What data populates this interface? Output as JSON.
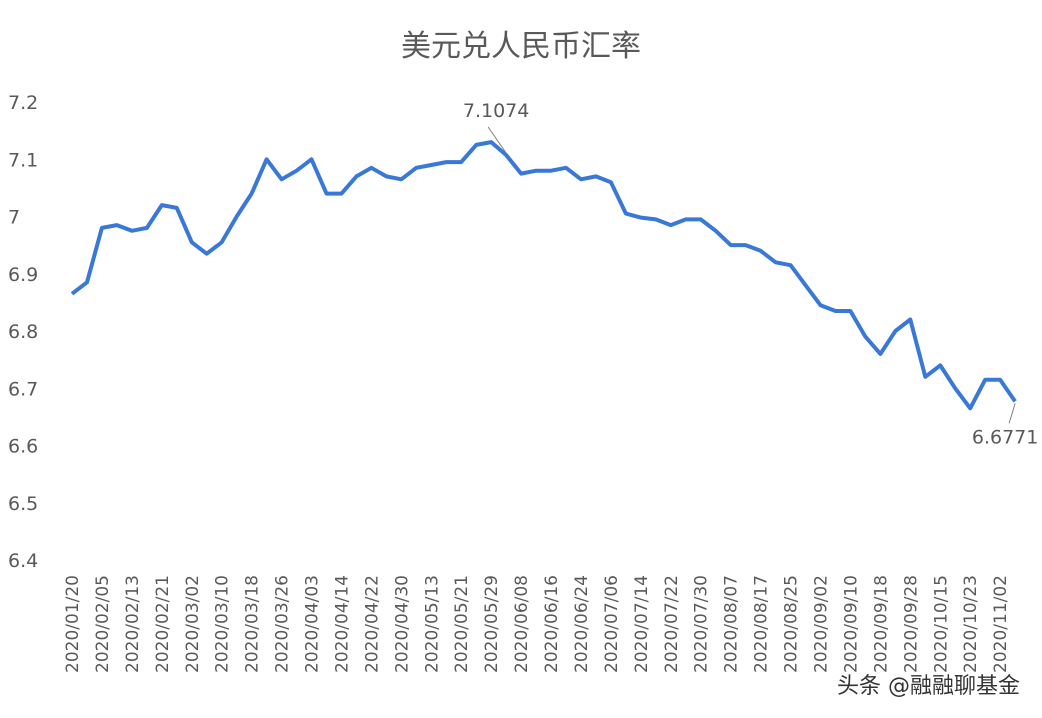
{
  "chart_data": {
    "type": "line",
    "title": "美元兑人民币汇率",
    "watermark": "头条 @融融聊基金",
    "color": "#3a78d8",
    "categories": [
      "2020/01/20",
      null,
      "2020/02/05",
      null,
      "2020/02/13",
      null,
      "2020/02/21",
      null,
      "2020/03/02",
      null,
      "2020/03/10",
      null,
      "2020/03/18",
      null,
      "2020/03/26",
      null,
      "2020/04/03",
      null,
      "2020/04/14",
      null,
      "2020/04/22",
      null,
      "2020/04/30",
      null,
      "2020/05/13",
      null,
      "2020/05/21",
      null,
      "2020/05/29",
      null,
      "2020/06/08",
      null,
      "2020/06/16",
      null,
      "2020/06/24",
      null,
      "2020/07/06",
      null,
      "2020/07/14",
      null,
      "2020/07/22",
      null,
      "2020/07/30",
      null,
      "2020/08/07",
      null,
      "2020/08/17",
      null,
      "2020/08/25",
      null,
      "2020/09/02",
      null,
      "2020/09/10",
      null,
      "2020/09/18",
      null,
      "2020/09/28",
      null,
      "2020/10/15",
      null,
      "2020/10/23",
      null,
      "2020/11/02",
      null
    ],
    "values": [
      6.865,
      6.885,
      6.98,
      6.985,
      6.975,
      6.98,
      7.02,
      7.015,
      6.955,
      6.935,
      6.955,
      7.0,
      7.04,
      7.1,
      7.065,
      7.08,
      7.1,
      7.04,
      7.04,
      7.07,
      7.085,
      7.07,
      7.065,
      7.085,
      7.09,
      7.095,
      7.095,
      7.125,
      7.13,
      7.1074,
      7.075,
      7.08,
      7.08,
      7.085,
      7.065,
      7.07,
      7.06,
      7.005,
      6.998,
      6.995,
      6.985,
      6.995,
      6.995,
      6.975,
      6.95,
      6.95,
      6.94,
      6.92,
      6.915,
      6.88,
      6.845,
      6.835,
      6.835,
      6.79,
      6.76,
      6.8,
      6.82,
      6.72,
      6.74,
      6.7,
      6.665,
      6.715,
      6.715,
      6.6771
    ],
    "value_labels": [
      null,
      null,
      null,
      null,
      null,
      null,
      null,
      null,
      null,
      null,
      null,
      null,
      null,
      null,
      null,
      null,
      null,
      null,
      null,
      null,
      null,
      null,
      null,
      null,
      null,
      null,
      null,
      null,
      null,
      "7.1074",
      null,
      null,
      null,
      null,
      null,
      null,
      null,
      null,
      null,
      null,
      null,
      null,
      null,
      null,
      null,
      null,
      null,
      null,
      null,
      null,
      null,
      null,
      null,
      null,
      null,
      null,
      null,
      null,
      null,
      null,
      null,
      null,
      null,
      "6.6771"
    ],
    "ylim": [
      6.4,
      7.2
    ],
    "yticks": [
      6.4,
      6.5,
      6.6,
      6.7,
      6.8,
      6.9,
      7,
      7.1,
      7.2
    ],
    "grid": false
  }
}
